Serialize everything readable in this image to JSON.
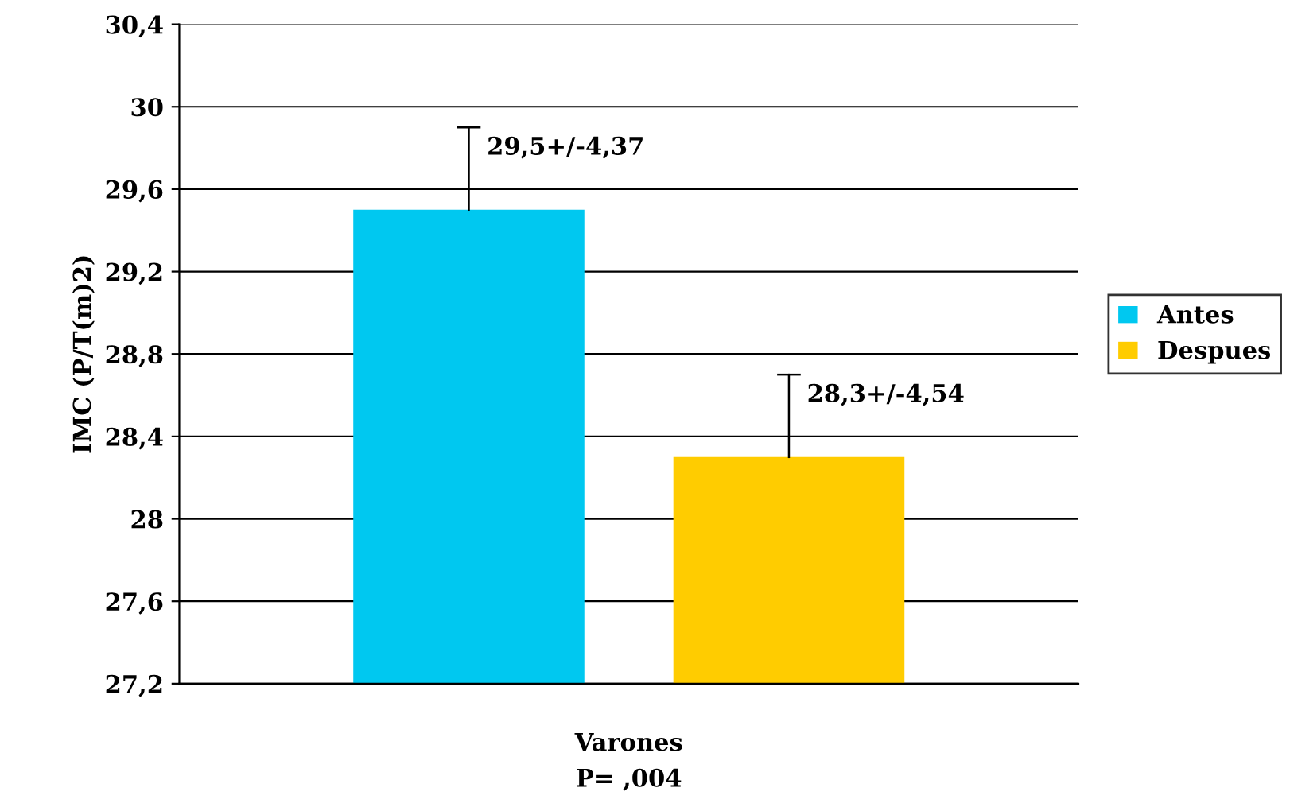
{
  "chart_data": {
    "type": "bar",
    "ylabel": "IMC (P/T(m)2)",
    "categories": [
      "Varones"
    ],
    "series": [
      {
        "name": "Antes",
        "color": "#00c8f0",
        "values": [
          29.5
        ],
        "errors": [
          [
            29.5,
            29.9
          ]
        ],
        "value_labels": [
          "29,5+/-4,37"
        ]
      },
      {
        "name": "Despues",
        "color": "#ffcc00",
        "values": [
          28.3
        ],
        "errors": [
          [
            28.3,
            28.7
          ]
        ],
        "value_labels": [
          "28,3+/-4,54"
        ]
      }
    ],
    "ylim": [
      27.2,
      30.4
    ],
    "yticks": [
      {
        "value": 27.2,
        "label": "27,2"
      },
      {
        "value": 27.6,
        "label": "27,6"
      },
      28,
      {
        "value": 28.4,
        "label": "28,4"
      },
      {
        "value": 28.8,
        "label": "28,8"
      },
      {
        "value": 29.2,
        "label": "29,2"
      },
      {
        "value": 29.6,
        "label": "29,6"
      },
      30,
      {
        "value": 30.4,
        "label": "30,4"
      }
    ],
    "grid": "y",
    "legend": "right",
    "annotations": [
      "P= ,004"
    ]
  }
}
